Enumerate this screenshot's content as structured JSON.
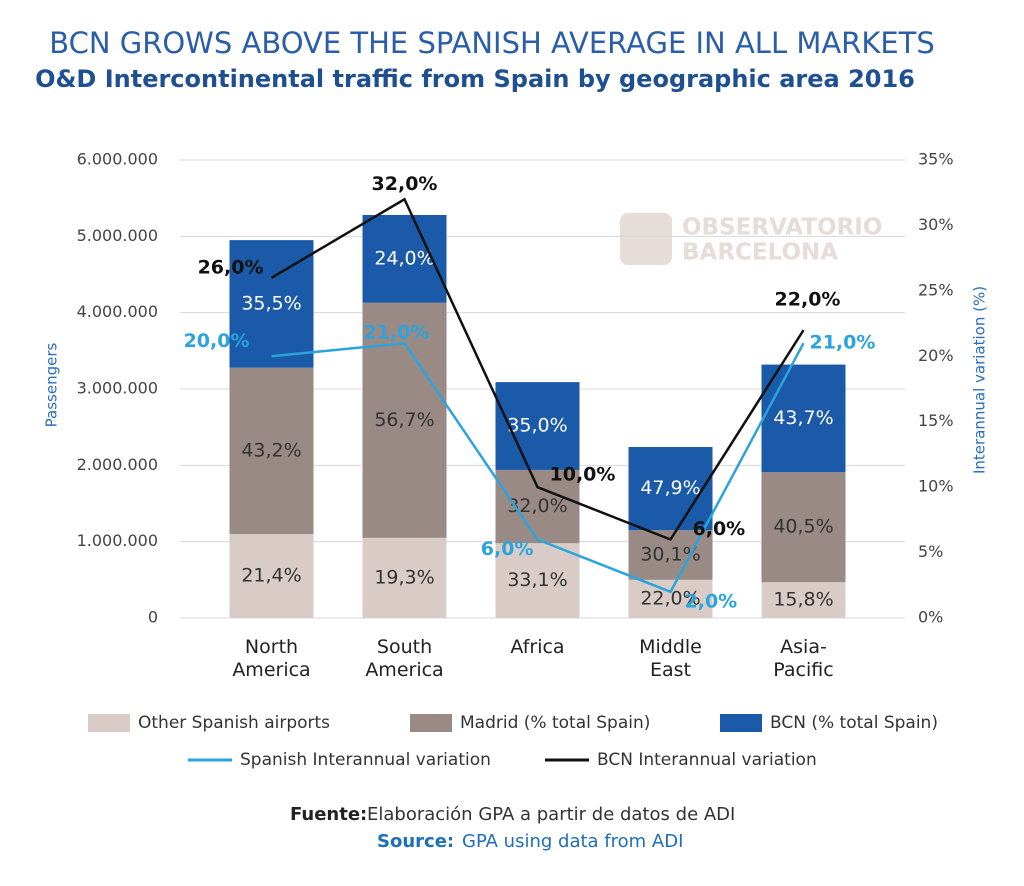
{
  "chart_data": {
    "type": "stacked_bar_line",
    "title": "BCN GROWS ABOVE THE SPANISH AVERAGE IN ALL MARKETS",
    "subtitle": "O&D Intercontinental traffic from Spain by geographic area 2016",
    "ylabel": "Passengers",
    "y2label": "Interannual variation (%)",
    "watermark": [
      "OBSERVATORIO",
      "BARCELONA"
    ],
    "categories": [
      "North America",
      "South America",
      "Africa",
      "Middle East",
      "Asia-Pacific"
    ],
    "ylim": [
      0,
      6000000
    ],
    "yticks": [
      0,
      {
        "value": 1000000,
        "label": "1.000.000"
      },
      {
        "value": 2000000,
        "label": "2.000.000"
      },
      {
        "value": 3000000,
        "label": "3.000.000"
      },
      {
        "value": 4000000,
        "label": "4.000.000"
      },
      {
        "value": 5000000,
        "label": "5.000.000"
      },
      {
        "value": 6000000,
        "label": "6.000.000"
      }
    ],
    "y2lim": [
      0,
      35
    ],
    "y2ticks": [
      {
        "value": 0,
        "label": "0%"
      },
      {
        "value": 5,
        "label": "5%"
      },
      {
        "value": 10,
        "label": "10%"
      },
      {
        "value": 15,
        "label": "15%"
      },
      {
        "value": 20,
        "label": "20%"
      },
      {
        "value": 25,
        "label": "25%"
      },
      {
        "value": 30,
        "label": "30%"
      },
      {
        "value": 35,
        "label": "35%"
      }
    ],
    "grid": true,
    "bar_series": [
      {
        "name": "Other Spanish airports",
        "color": "#d9ccc6",
        "label_color": "#333333",
        "values": [
          1100000,
          1050000,
          980000,
          500000,
          470000
        ],
        "labels": [
          "21,4%",
          "19,3%",
          "33,1%",
          "22,0%",
          "15,8%"
        ]
      },
      {
        "name": "Madrid (% total Spain)",
        "color": "#9a8a85",
        "label_color": "#333333",
        "values": [
          2180000,
          3080000,
          960000,
          650000,
          1440000
        ],
        "labels": [
          "43,2%",
          "56,7%",
          "32,0%",
          "30,1%",
          "40,5%"
        ]
      },
      {
        "name": "BCN (% total Spain)",
        "color": "#1a5aa8",
        "label_color": "#ffffff",
        "values": [
          1670000,
          1150000,
          1150000,
          1090000,
          1410000
        ],
        "labels": [
          "35,5%",
          "24,0%",
          "35,0%",
          "47,9%",
          "43,7%"
        ]
      }
    ],
    "line_series": [
      {
        "name": "Spanish Interannual variation",
        "color": "#2ba3dc",
        "axis": "y2",
        "values": [
          20,
          21,
          6,
          2,
          21
        ],
        "value_labels": [
          "20,0%",
          "21,0%",
          "6,0%",
          "2,0%",
          "21,0%"
        ]
      },
      {
        "name": "BCN Interannual variation",
        "color": "#111111",
        "axis": "y2",
        "values": [
          26,
          32,
          10,
          6,
          22
        ],
        "value_labels": [
          "26,0%",
          "32,0%",
          "10,0%",
          "6,0%",
          "22,0%"
        ]
      }
    ],
    "source": {
      "es_label": "Fuente:",
      "es_text": "Elaboración GPA a partir de datos de ADI",
      "en_label": "Source:",
      "en_text": "GPA using data from ADI"
    }
  }
}
